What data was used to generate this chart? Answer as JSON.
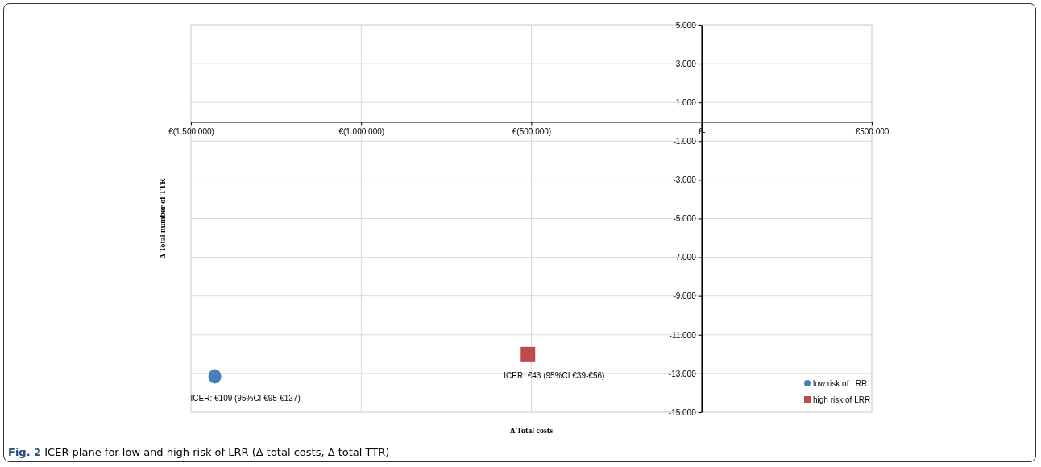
{
  "chart_data": {
    "type": "scatter",
    "title": "Fig. 2 ICER-plane for low and high risk of LRR (Δ total costs, Δ total TTR)",
    "xlabel": "Δ Total costs",
    "ylabel": "Δ Total number of TTR",
    "xlim": [
      -1500000,
      500000
    ],
    "ylim": [
      -15000,
      5000
    ],
    "xticks": [
      {
        "value": -1500000,
        "label": "€(1.500.000)"
      },
      {
        "value": -1000000,
        "label": "€(1.000.000)"
      },
      {
        "value": -500000,
        "label": "€(500.000)"
      },
      {
        "value": 0,
        "label": "€-"
      },
      {
        "value": 500000,
        "label": "€500.000"
      }
    ],
    "yticks": [
      {
        "value": 5000,
        "label": "5.000"
      },
      {
        "value": 3000,
        "label": "3.000"
      },
      {
        "value": 1000,
        "label": "1.000"
      },
      {
        "value": -1000,
        "label": "-1.000"
      },
      {
        "value": -3000,
        "label": "-3.000"
      },
      {
        "value": -5000,
        "label": "-5.000"
      },
      {
        "value": -7000,
        "label": "-7.000"
      },
      {
        "value": -9000,
        "label": "-9.000"
      },
      {
        "value": -11000,
        "label": "-11.000"
      },
      {
        "value": -13000,
        "label": "-13.000"
      },
      {
        "value": -15000,
        "label": "-15.000"
      }
    ],
    "grid": true,
    "legend": "bottom right",
    "series": [
      {
        "name": "low risk of LRR",
        "color": "#4a7ebb",
        "marker": "circle",
        "x": [
          -1430000
        ],
        "values": [
          -13150
        ]
      },
      {
        "name": "high risk of LRR",
        "color": "#be4b48",
        "marker": "square",
        "x": [
          -510000
        ],
        "values": [
          -12000
        ]
      }
    ],
    "annotations": [
      {
        "text": "ICER: €109 (95%CI €95-€127)",
        "x": -1430000,
        "y": -13150
      },
      {
        "text": "ICER: €43 (95%CI €39-€56)",
        "x": -510000,
        "y": -12000
      }
    ]
  }
}
